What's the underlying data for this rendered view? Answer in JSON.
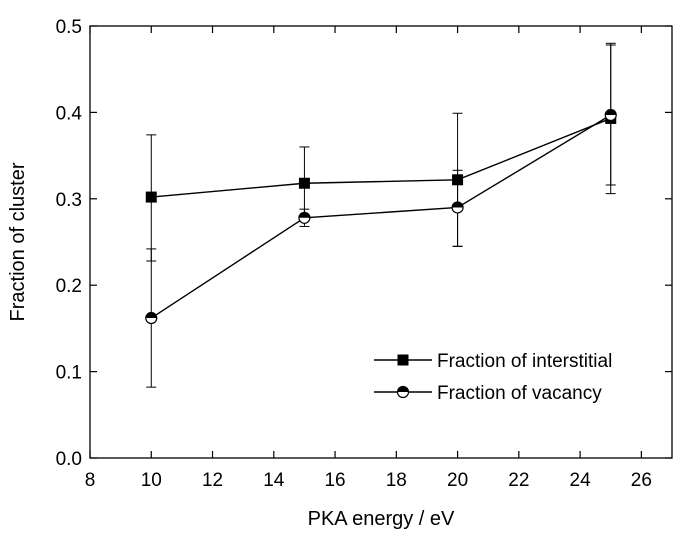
{
  "chart_data": {
    "type": "line",
    "title": "",
    "xlabel": "PKA energy / eV",
    "ylabel": "Fraction of cluster",
    "xlim": [
      8,
      27
    ],
    "ylim": [
      0.0,
      0.5
    ],
    "xticks": [
      8,
      10,
      12,
      14,
      16,
      18,
      20,
      22,
      24,
      26
    ],
    "yticks": [
      0.0,
      0.1,
      0.2,
      0.3,
      0.4,
      0.5
    ],
    "xtick_labels": [
      "8",
      "10",
      "12",
      "14",
      "16",
      "18",
      "20",
      "22",
      "24",
      "26"
    ],
    "ytick_labels": [
      "0.0",
      "0.1",
      "0.2",
      "0.3",
      "0.4",
      "0.5"
    ],
    "grid": false,
    "legend_position": "bottom-right",
    "series": [
      {
        "name": "Fraction of interstitial",
        "marker": "filled-square",
        "x": [
          10,
          15,
          20,
          25
        ],
        "y": [
          0.302,
          0.318,
          0.322,
          0.393
        ],
        "err_low": [
          0.228,
          0.276,
          0.245,
          0.306
        ],
        "err_high": [
          0.374,
          0.36,
          0.399,
          0.48
        ]
      },
      {
        "name": "Fraction of vacancy",
        "marker": "half-filled-circle",
        "x": [
          10,
          15,
          20,
          25
        ],
        "y": [
          0.162,
          0.278,
          0.29,
          0.397
        ],
        "err_low": [
          0.082,
          0.268,
          0.245,
          0.316
        ],
        "err_high": [
          0.242,
          0.288,
          0.333,
          0.478
        ]
      }
    ]
  }
}
